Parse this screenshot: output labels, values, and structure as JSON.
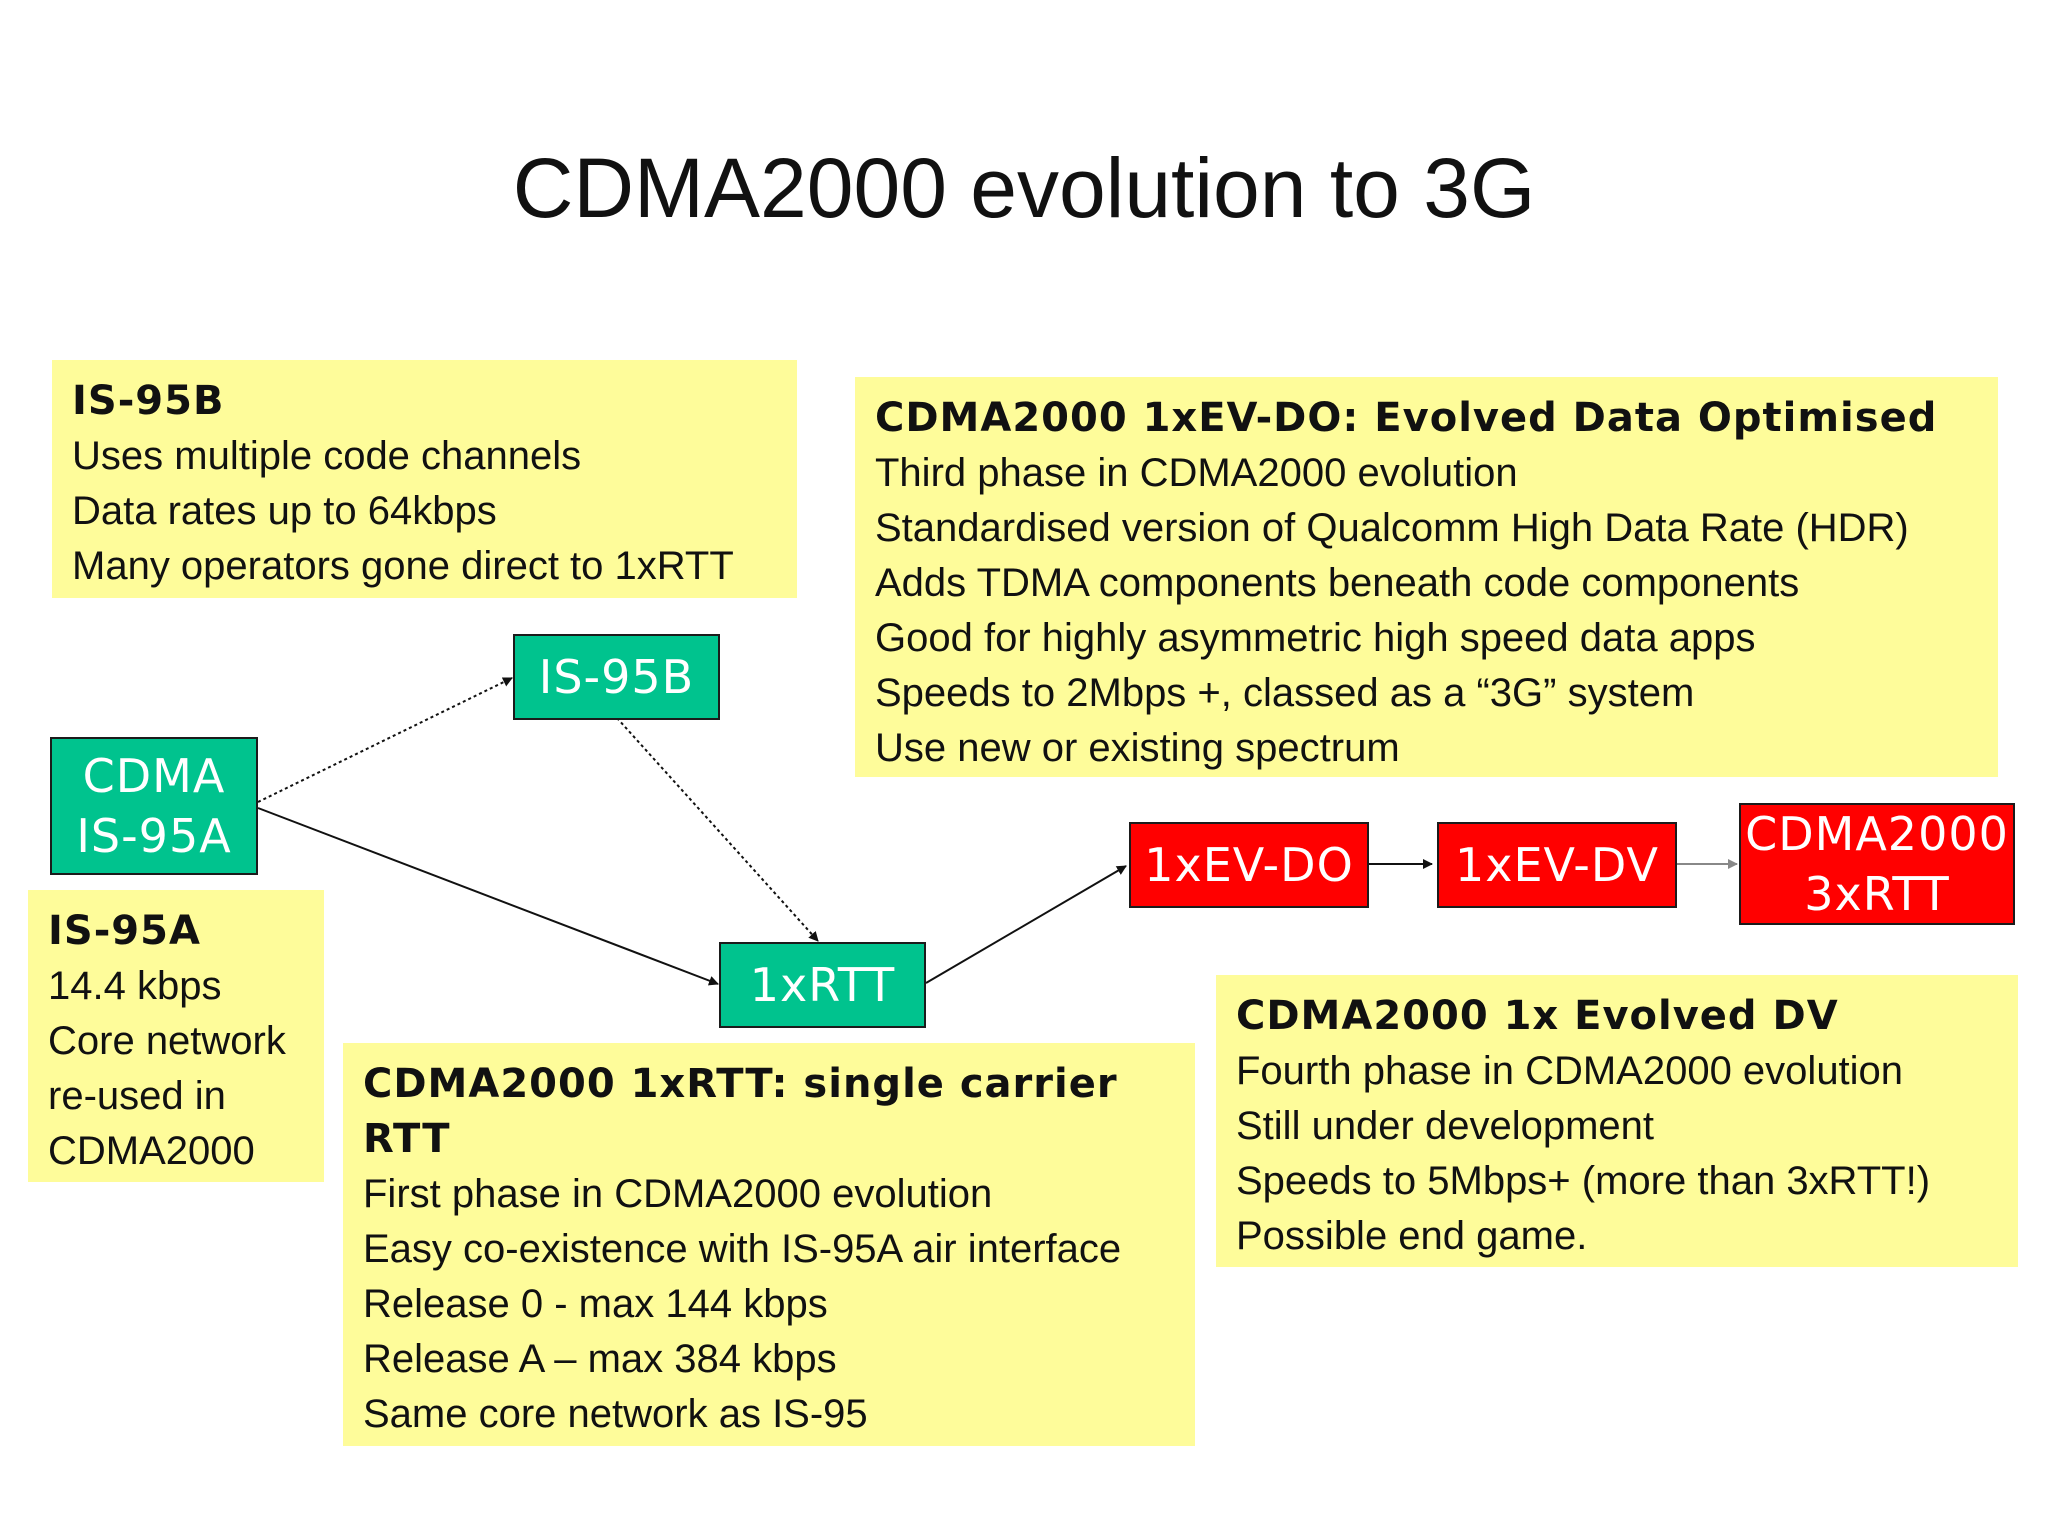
{
  "title": "CDMA2000 evolution to 3G",
  "nodes": {
    "cdma_is95a": [
      "CDMA",
      "IS-95A"
    ],
    "is95b": "IS-95B",
    "onexrtt": "1xRTT",
    "evdo": "1xEV-DO",
    "evdv": "1xEV-DV",
    "threexrtt": [
      "CDMA2000",
      "3xRTT"
    ]
  },
  "notes": {
    "is95b": {
      "heading": "IS-95B",
      "lines": [
        "Uses multiple code channels",
        "Data rates up to 64kbps",
        "Many operators gone direct to 1xRTT"
      ]
    },
    "evdo": {
      "heading": "CDMA2000 1xEV-DO: Evolved Data Optimised",
      "lines": [
        "Third phase in CDMA2000 evolution",
        "Standardised version of Qualcomm High Data Rate (HDR)",
        "Adds TDMA components beneath code components",
        "Good for highly asymmetric high speed data apps",
        "Speeds to 2Mbps +, classed as a “3G” system",
        "Use new or existing spectrum"
      ]
    },
    "is95a": {
      "heading": "IS-95A",
      "lines": [
        "14.4 kbps",
        "Core network",
        "re-used in",
        "CDMA2000"
      ]
    },
    "onexrtt": {
      "heading": [
        "CDMA2000 1xRTT: single carrier",
        "RTT"
      ],
      "lines": [
        "First phase in CDMA2000 evolution",
        "Easy co-existence with IS-95A air interface",
        "Release 0 - max 144 kbps",
        "Release A – max 384 kbps",
        "Same core network as IS-95"
      ]
    },
    "evdv": {
      "heading": "CDMA2000 1x Evolved DV",
      "lines": [
        "Fourth phase in CDMA2000 evolution",
        "Still under development",
        "Speeds to 5Mbps+ (more than 3xRTT!)",
        "Possible end game."
      ]
    }
  },
  "colors": {
    "note_fill": "#fefc9a",
    "node_green": "#00c38e",
    "node_red": "#ff0000"
  }
}
